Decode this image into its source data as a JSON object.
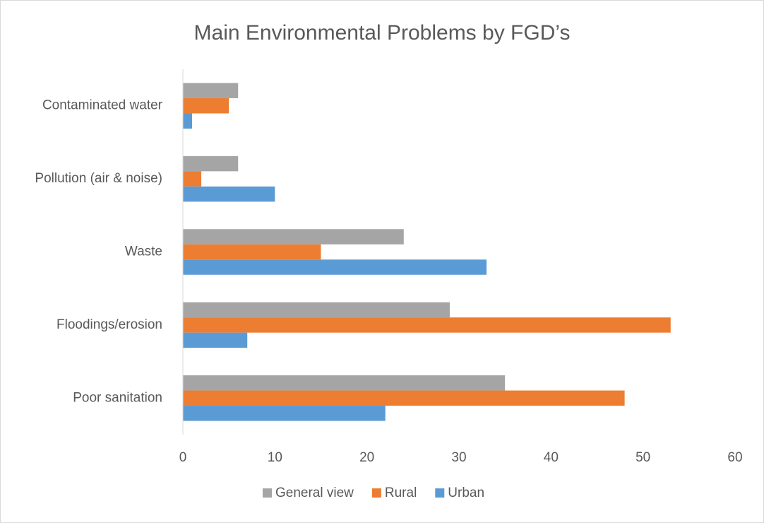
{
  "chart_data": {
    "type": "hbar",
    "title": "Main Environmental  Problems by FGD’s",
    "categories": [
      "Poor sanitation",
      "Floodings/erosion ",
      "Waste",
      "Pollution (air & noise)",
      "Contaminated water"
    ],
    "series": [
      {
        "name": "General view",
        "color": "#a5a5a5",
        "values": [
          35,
          29,
          24,
          6,
          6
        ]
      },
      {
        "name": "Rural",
        "color": "#ed7d31",
        "values": [
          48,
          53,
          15,
          2,
          5
        ]
      },
      {
        "name": "Urban",
        "color": "#5b9bd5",
        "values": [
          22,
          7,
          33,
          10,
          1
        ]
      }
    ],
    "xlim": [
      0,
      60
    ],
    "xticks": [
      0,
      10,
      20,
      30,
      40,
      50,
      60
    ],
    "grid": false,
    "legend": "bottom"
  }
}
